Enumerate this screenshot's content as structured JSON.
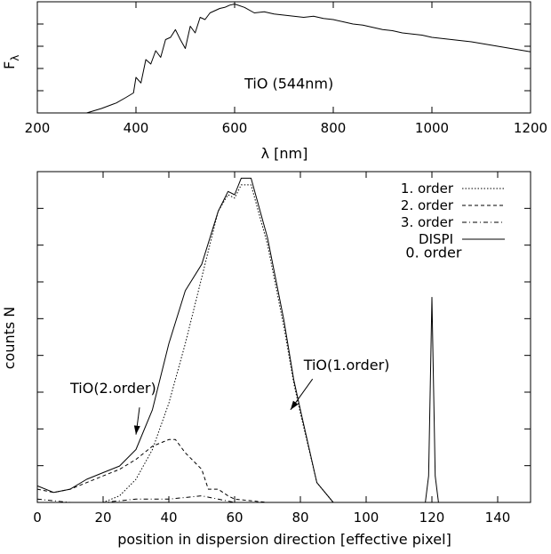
{
  "chart_data": [
    {
      "type": "line",
      "ylabel": "F",
      "ylabel_subscript": "λ",
      "xlabel": "λ [nm]",
      "xlim": [
        200,
        1200
      ],
      "ylim": [
        0,
        1
      ],
      "y_ticks_labeled": false,
      "x_ticks": [
        200,
        400,
        600,
        800,
        1000,
        1200
      ],
      "grid": false,
      "annotations": [
        {
          "text": "TiO (544nm)",
          "at": [
            620,
            0.22
          ]
        }
      ],
      "series": [
        {
          "style": "solid",
          "x": [
            300,
            330,
            360,
            380,
            395,
            400,
            410,
            420,
            430,
            440,
            450,
            460,
            470,
            480,
            490,
            500,
            510,
            520,
            530,
            540,
            550,
            560,
            570,
            580,
            590,
            600,
            620,
            640,
            660,
            680,
            700,
            720,
            740,
            760,
            780,
            800,
            820,
            840,
            860,
            880,
            900,
            920,
            940,
            960,
            980,
            1000,
            1040,
            1080,
            1120,
            1160,
            1200
          ],
          "y": [
            0.0,
            0.04,
            0.09,
            0.14,
            0.18,
            0.32,
            0.27,
            0.48,
            0.44,
            0.56,
            0.5,
            0.66,
            0.68,
            0.75,
            0.66,
            0.58,
            0.78,
            0.72,
            0.86,
            0.84,
            0.9,
            0.92,
            0.94,
            0.95,
            0.97,
            0.98,
            0.95,
            0.9,
            0.91,
            0.89,
            0.88,
            0.87,
            0.86,
            0.87,
            0.85,
            0.84,
            0.82,
            0.8,
            0.79,
            0.77,
            0.75,
            0.74,
            0.72,
            0.71,
            0.7,
            0.68,
            0.66,
            0.64,
            0.61,
            0.58,
            0.55
          ]
        }
      ]
    },
    {
      "type": "line",
      "xlabel": "position in dispersion direction [effective pixel]",
      "ylabel": "counts N",
      "xlim": [
        0,
        150
      ],
      "ylim": [
        0,
        1
      ],
      "y_ticks_labeled": false,
      "x_ticks": [
        0,
        20,
        40,
        60,
        80,
        100,
        120,
        140
      ],
      "grid": false,
      "legend_position": "top-right",
      "annotations": [
        {
          "text": "TiO(2.order)",
          "at": [
            10,
            0.33
          ],
          "arrow_to": [
            30,
            0.205
          ]
        },
        {
          "text": "TiO(1.order)",
          "at": [
            81,
            0.4
          ],
          "arrow_to": [
            77,
            0.28
          ]
        },
        {
          "text": "0. order",
          "at": [
            112,
            0.74
          ]
        }
      ],
      "series": [
        {
          "name": "1. order",
          "style": "dotted",
          "x": [
            0,
            20,
            25,
            30,
            35,
            40,
            45,
            50,
            55,
            58,
            60,
            62,
            65,
            70,
            75,
            78,
            80,
            85,
            90,
            100,
            150
          ],
          "y": [
            0.0,
            0.0,
            0.02,
            0.07,
            0.16,
            0.3,
            0.48,
            0.68,
            0.88,
            0.93,
            0.92,
            0.96,
            0.96,
            0.78,
            0.53,
            0.36,
            0.27,
            0.06,
            0.0,
            0.0,
            0.0
          ]
        },
        {
          "name": "2. order",
          "style": "dashed",
          "x": [
            0,
            5,
            10,
            15,
            20,
            25,
            30,
            35,
            40,
            42,
            45,
            48,
            50,
            52,
            55,
            58,
            60,
            70,
            150
          ],
          "y": [
            0.04,
            0.03,
            0.04,
            0.06,
            0.08,
            0.1,
            0.13,
            0.17,
            0.19,
            0.19,
            0.15,
            0.12,
            0.1,
            0.04,
            0.04,
            0.02,
            0.01,
            0.0,
            0.0
          ]
        },
        {
          "name": "3. order",
          "style": "dash-dot",
          "x": [
            0,
            10,
            20,
            30,
            40,
            50,
            55,
            60,
            70,
            150
          ],
          "y": [
            0.01,
            0.0,
            0.0,
            0.01,
            0.01,
            0.02,
            0.01,
            0.0,
            0.0,
            0.0
          ]
        },
        {
          "name": "DISPI",
          "style": "solid",
          "x": [
            0,
            5,
            10,
            15,
            20,
            25,
            30,
            35,
            40,
            45,
            50,
            55,
            58,
            60,
            62,
            65,
            70,
            75,
            78,
            80,
            85,
            90,
            100,
            118,
            119,
            120,
            121,
            122,
            123,
            150
          ],
          "y": [
            0.05,
            0.03,
            0.04,
            0.07,
            0.09,
            0.11,
            0.16,
            0.28,
            0.48,
            0.64,
            0.72,
            0.88,
            0.94,
            0.93,
            0.98,
            0.98,
            0.8,
            0.55,
            0.37,
            0.28,
            0.06,
            0.0,
            0.0,
            0.0,
            0.08,
            0.62,
            0.08,
            0.0,
            0.0,
            0.0
          ]
        }
      ]
    }
  ]
}
